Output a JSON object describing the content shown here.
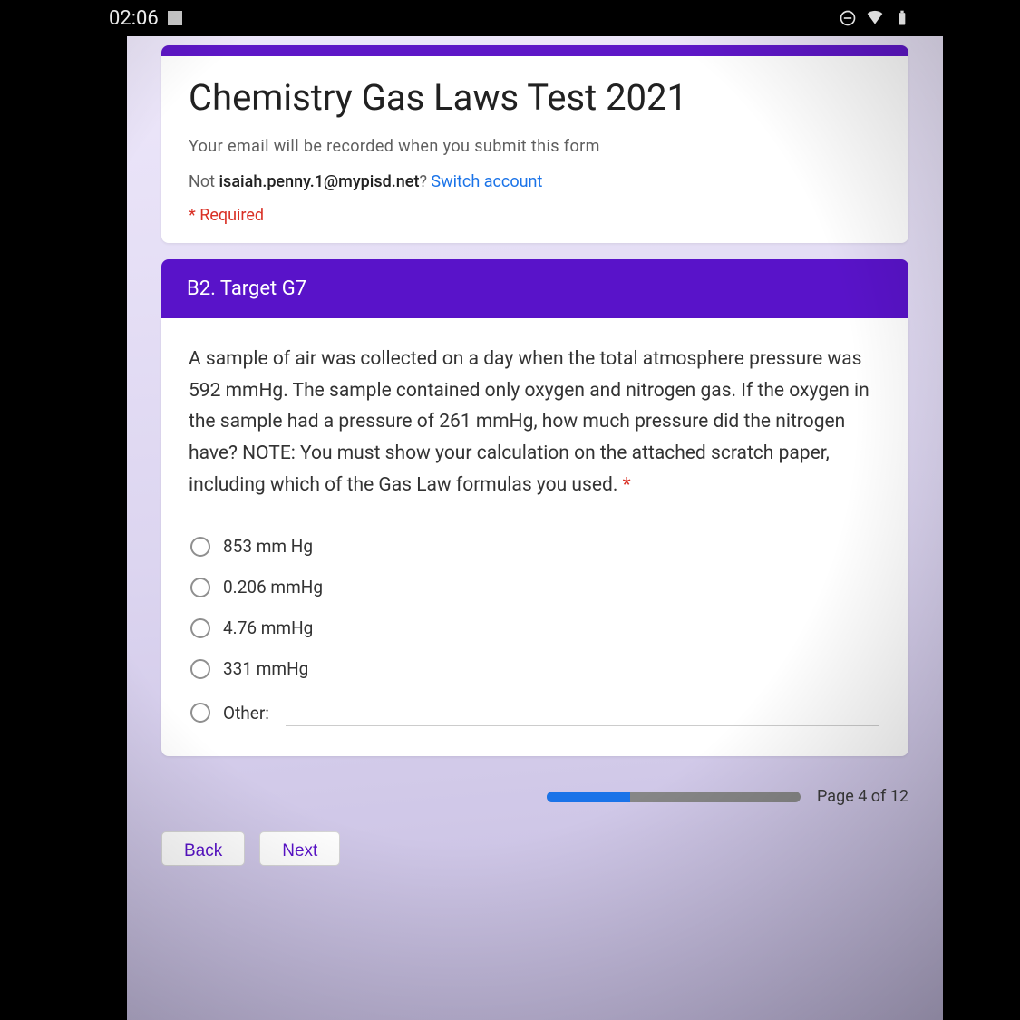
{
  "status": {
    "time": "02:06"
  },
  "form": {
    "title": "Chemistry Gas Laws Test 2021",
    "record_note": "Your email will be recorded when you submit this form",
    "not_prefix": "Not ",
    "user_email": "isaiah.penny.1@mypisd.net",
    "question_mark": "? ",
    "switch_account": "Switch account",
    "required_star": "*",
    "required_label": " Required"
  },
  "section": {
    "title": "B2. Target G7"
  },
  "question": {
    "text": "A sample of air was collected on a day when the total atmosphere pressure was 592 mmHg. The sample contained only oxygen and nitrogen gas. If the oxygen in the sample had a pressure of 261 mmHg, how much pressure did the nitrogen have? NOTE: You must show your calculation on the attached scratch paper, including which of the Gas Law formulas you used. ",
    "required_mark": "*",
    "options": [
      "853 mm Hg",
      "0.206 mmHg",
      "4.76 mmHg",
      "331 mmHg"
    ],
    "other_label": "Other:"
  },
  "progress": {
    "percent": 33,
    "label": "Page 4 of 12"
  },
  "nav": {
    "back": "Back",
    "next": "Next"
  },
  "colors": {
    "accent_purple": "#5913c9",
    "link_blue": "#1a73e8",
    "error_red": "#d93025",
    "text_dark": "#212121",
    "text_mid": "#5f5f5f",
    "bg_lilac": "#e8e3f5",
    "progress_track": "#868686"
  }
}
